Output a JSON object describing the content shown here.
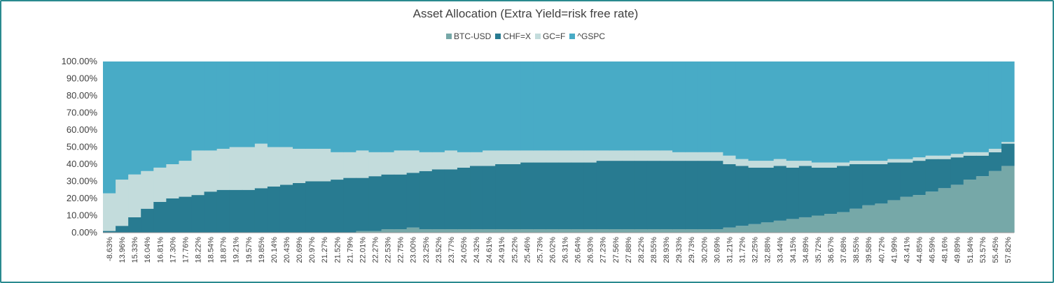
{
  "colors": {
    "btc": "#76a8a8",
    "chf": "#287b91",
    "gc": "#c3dcdc",
    "gspc": "#48abc6",
    "frame": "#2a8a8f"
  },
  "chart_data": {
    "type": "bar",
    "stacked": true,
    "title": "Asset Allocation (Extra Yield=risk free rate)",
    "ylim": [
      0,
      100
    ],
    "y_ticks": [
      "0.00%",
      "10.00%",
      "20.00%",
      "30.00%",
      "40.00%",
      "50.00%",
      "60.00%",
      "70.00%",
      "80.00%",
      "90.00%",
      "100.00%"
    ],
    "x_tick_labels": [
      "-8.63%",
      "13.96%",
      "15.33%",
      "16.04%",
      "16.81%",
      "17.30%",
      "17.76%",
      "18.22%",
      "18.54%",
      "18.87%",
      "19.21%",
      "19.57%",
      "19.85%",
      "20.14%",
      "20.43%",
      "20.69%",
      "20.97%",
      "21.27%",
      "21.52%",
      "21.79%",
      "22.01%",
      "22.27%",
      "22.53%",
      "22.75%",
      "23.00%",
      "23.25%",
      "23.52%",
      "23.77%",
      "24.05%",
      "24.32%",
      "24.61%",
      "24.91%",
      "25.22%",
      "25.46%",
      "25.73%",
      "26.02%",
      "26.31%",
      "26.64%",
      "26.93%",
      "27.23%",
      "27.56%",
      "27.88%",
      "28.22%",
      "28.55%",
      "28.93%",
      "29.33%",
      "29.73%",
      "30.20%",
      "30.69%",
      "31.21%",
      "31.72%",
      "32.25%",
      "32.88%",
      "33.44%",
      "34.15%",
      "34.89%",
      "35.72%",
      "36.67%",
      "37.68%",
      "38.55%",
      "39.58%",
      "40.72%",
      "41.99%",
      "43.41%",
      "44.85%",
      "46.59%",
      "48.16%",
      "49.89%",
      "51.84%",
      "53.57%",
      "55.45%",
      "57.82%"
    ],
    "series_note_points_per_label": 10,
    "series": [
      {
        "name": "BTC-USD",
        "values": [
          0,
          0,
          0,
          0,
          0,
          0,
          0,
          0,
          0,
          0,
          0,
          0,
          0,
          0,
          0,
          0,
          0,
          0,
          0,
          0,
          1,
          1,
          2,
          2,
          3,
          2,
          2,
          2,
          2,
          2,
          2,
          2,
          2,
          2,
          2,
          2,
          2,
          2,
          2,
          2,
          2,
          2,
          2,
          2,
          2,
          2,
          2,
          2,
          2,
          3,
          4,
          5,
          6,
          7,
          8,
          9,
          10,
          11,
          12,
          14,
          16,
          17,
          19,
          21,
          22,
          24,
          26,
          28,
          31,
          33,
          36,
          39
        ]
      },
      {
        "name": "CHF=X",
        "values": [
          1,
          4,
          9,
          14,
          18,
          20,
          21,
          22,
          24,
          25,
          25,
          25,
          26,
          27,
          28,
          29,
          30,
          30,
          31,
          32,
          31,
          32,
          32,
          32,
          32,
          34,
          35,
          35,
          36,
          37,
          37,
          38,
          38,
          39,
          39,
          39,
          39,
          39,
          39,
          40,
          40,
          40,
          40,
          40,
          40,
          40,
          40,
          40,
          40,
          37,
          35,
          33,
          32,
          32,
          30,
          30,
          28,
          27,
          27,
          26,
          24,
          23,
          22,
          20,
          20,
          19,
          17,
          16,
          14,
          12,
          11,
          13
        ]
      },
      {
        "name": "GC=F",
        "values": [
          22,
          27,
          25,
          22,
          20,
          20,
          21,
          26,
          24,
          24,
          25,
          25,
          26,
          23,
          22,
          20,
          19,
          19,
          16,
          15,
          16,
          14,
          13,
          14,
          13,
          11,
          10,
          11,
          9,
          8,
          9,
          8,
          8,
          7,
          7,
          7,
          7,
          7,
          7,
          6,
          6,
          6,
          6,
          6,
          6,
          5,
          5,
          5,
          5,
          5,
          4,
          4,
          4,
          4,
          4,
          3,
          3,
          3,
          2,
          2,
          2,
          2,
          2,
          2,
          2,
          2,
          2,
          2,
          2,
          2,
          2,
          1
        ]
      },
      {
        "name": "^GSPC",
        "values": [
          77,
          69,
          66,
          64,
          62,
          60,
          58,
          52,
          52,
          51,
          50,
          50,
          48,
          50,
          50,
          51,
          51,
          51,
          53,
          53,
          52,
          53,
          53,
          52,
          52,
          53,
          53,
          52,
          53,
          53,
          52,
          52,
          52,
          52,
          52,
          52,
          52,
          52,
          52,
          52,
          52,
          52,
          52,
          52,
          52,
          53,
          53,
          53,
          53,
          55,
          57,
          58,
          58,
          57,
          58,
          58,
          59,
          59,
          59,
          58,
          58,
          58,
          57,
          57,
          56,
          55,
          55,
          54,
          53,
          53,
          51,
          47
        ]
      }
    ],
    "legend_position": "top-center",
    "grid": false
  }
}
